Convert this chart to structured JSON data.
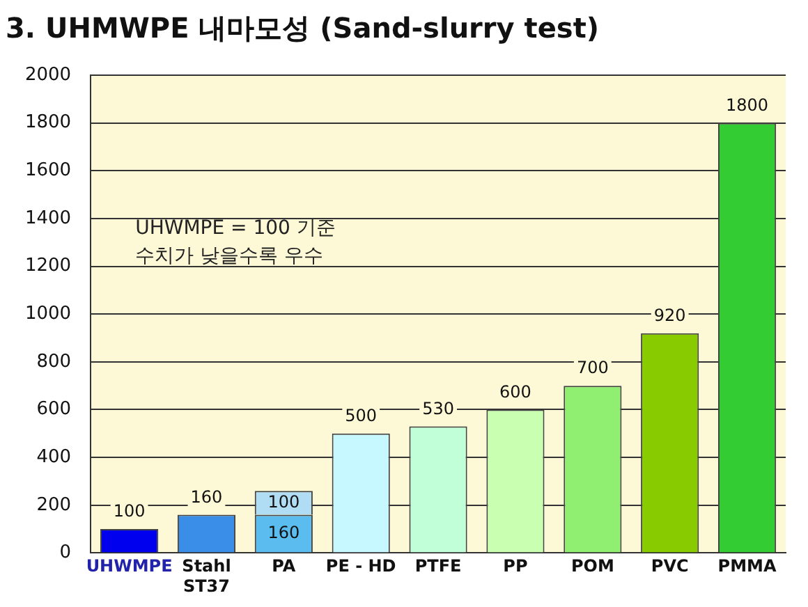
{
  "chart_data": {
    "type": "bar",
    "title": "3. UHMWPE 내마모성 (Sand-slurry test)",
    "categories": [
      "UHWMPE",
      "Stahl ST37",
      "PA",
      "PE - HD",
      "PTFE",
      "PP",
      "POM",
      "PVC",
      "PMMA"
    ],
    "stacked": true,
    "series": [
      {
        "colors": [
          "#0000ee",
          "#3a8ee8",
          "#5bbcf0",
          "#c8f8ff",
          "#c0ffd8",
          "#c8ffb0",
          "#90ee70",
          "#88cc00",
          "#33cc33"
        ],
        "values": [
          100,
          160,
          160,
          500,
          530,
          600,
          700,
          920,
          1800
        ],
        "value_labels": [
          "100",
          "160",
          "160",
          "500",
          "530",
          "600",
          "700",
          "920",
          "1800"
        ]
      },
      {
        "color": "#b0dcf4",
        "values": [
          null,
          null,
          100,
          null,
          null,
          null,
          null,
          null,
          null
        ],
        "value_labels": [
          null,
          null,
          "100",
          null,
          null,
          null,
          null,
          null,
          null
        ]
      }
    ],
    "ylim": [
      0,
      2000
    ],
    "yticks": [
      0,
      200,
      400,
      600,
      800,
      1000,
      1200,
      1400,
      1600,
      1800,
      2000
    ],
    "grid": "y",
    "annotations": [
      "UHWMPE = 100 기준",
      "수치가 낮을수록 우수"
    ]
  }
}
